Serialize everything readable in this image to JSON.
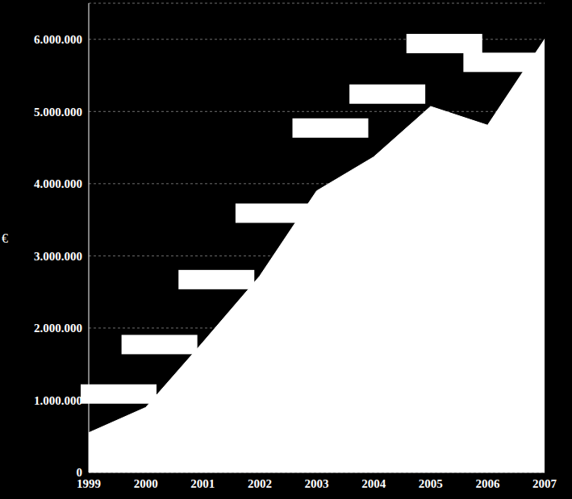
{
  "chart_data": {
    "type": "area",
    "y_label": "€",
    "categories": [
      "1999",
      "2000",
      "2001",
      "2002",
      "2003",
      "2004",
      "2005",
      "2006",
      "2007"
    ],
    "values": [
      550000,
      900000,
      1800000,
      2720000,
      3900000,
      4370000,
      5070000,
      4810000,
      6000000
    ],
    "color": "#ffffff",
    "ylim": [
      0,
      6500000
    ],
    "yticks": [
      0,
      {
        "value": 1000000,
        "label": "1.000.000"
      },
      {
        "value": 2000000,
        "label": "2.000.000"
      },
      {
        "value": 3000000,
        "label": "3.000.000"
      },
      {
        "value": 4000000,
        "label": "4.000.000"
      },
      {
        "value": 5000000,
        "label": "5.000.000"
      },
      {
        "value": 6000000,
        "label": "6.000.000"
      }
    ],
    "grid": true
  }
}
